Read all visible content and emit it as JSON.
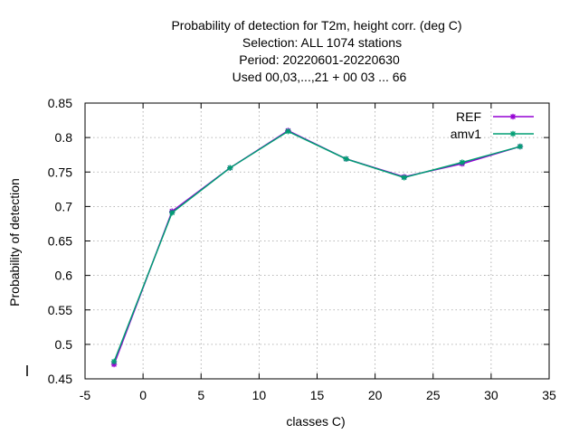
{
  "chart_data": {
    "type": "line",
    "title_lines": [
      "Probability of detection  for T2m, height corr. (deg C)",
      "Selection: ALL   1074 stations",
      "Period: 20220601-20220630",
      "Used  00,03,...,21  + 00 03 ... 66"
    ],
    "xlabel": "classes C)",
    "ylabel": "Probability of detection",
    "xlim": [
      -5,
      35
    ],
    "ylim": [
      0.45,
      0.85
    ],
    "xticks": [
      -5,
      0,
      5,
      10,
      15,
      20,
      25,
      30,
      35
    ],
    "yticks": [
      0.45,
      0.5,
      0.55,
      0.6,
      0.65,
      0.7,
      0.75,
      0.8,
      0.85
    ],
    "xtick_labels": [
      "-5",
      "0",
      "5",
      "10",
      "15",
      "20",
      "25",
      "30",
      "35"
    ],
    "ytick_labels": [
      "0.45",
      "0.5",
      "0.55",
      "0.6",
      "0.65",
      "0.7",
      "0.75",
      "0.8",
      "0.85"
    ],
    "grid": true,
    "legend_position": "top-right",
    "x": [
      -2.5,
      2.5,
      7.5,
      12.5,
      17.5,
      22.5,
      27.5,
      32.5
    ],
    "series": [
      {
        "name": "REF",
        "color": "#9400d3",
        "values": [
          0.471,
          0.693,
          0.756,
          0.81,
          0.769,
          0.743,
          0.762,
          0.787
        ]
      },
      {
        "name": "amv1",
        "color": "#009e73",
        "values": [
          0.475,
          0.691,
          0.756,
          0.809,
          0.769,
          0.742,
          0.764,
          0.787
        ]
      }
    ]
  }
}
